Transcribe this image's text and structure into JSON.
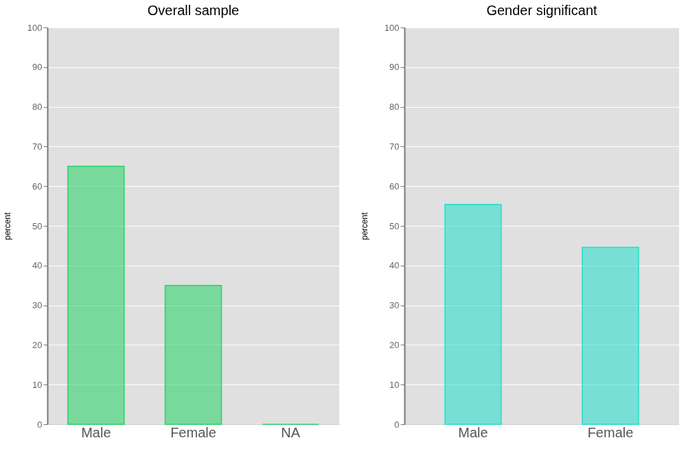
{
  "chart_data": [
    {
      "type": "bar",
      "title": "Overall sample",
      "ylabel": "percent",
      "categories": [
        "Male",
        "Female",
        "NA"
      ],
      "values": [
        65,
        35,
        0
      ],
      "color": "#25d366",
      "ylim": [
        0,
        100
      ],
      "yticks": [
        0,
        10,
        20,
        30,
        40,
        50,
        60,
        70,
        80,
        90,
        100
      ],
      "grid": "y"
    },
    {
      "type": "bar",
      "title": "Gender significant",
      "ylabel": "percent",
      "categories": [
        "Male",
        "Female"
      ],
      "values": [
        55.4,
        44.6
      ],
      "color": "#20dfcc",
      "ylim": [
        0,
        100
      ],
      "yticks": [
        0,
        10,
        20,
        30,
        40,
        50,
        60,
        70,
        80,
        90,
        100
      ],
      "grid": "y"
    }
  ]
}
